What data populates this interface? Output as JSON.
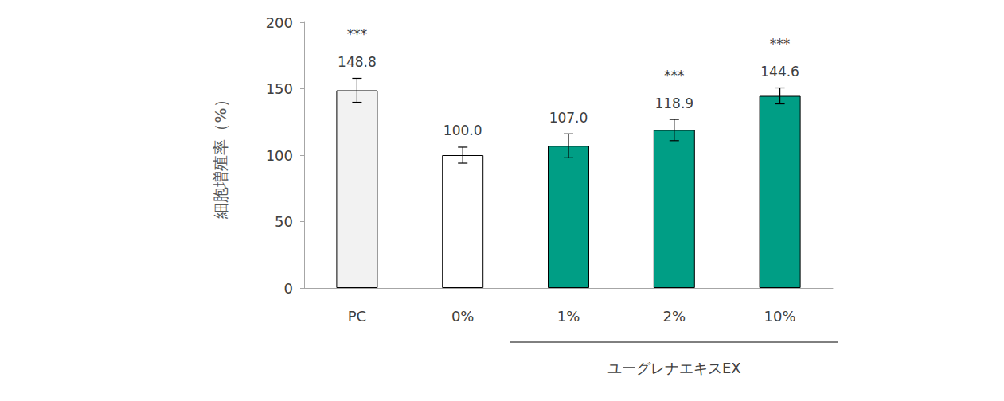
{
  "chart_data": {
    "type": "bar",
    "y_label": "細胞増殖率（%）",
    "categories": [
      "PC",
      "0%",
      "1%",
      "2%",
      "10%"
    ],
    "values": [
      148.8,
      100.0,
      107.0,
      118.9,
      144.6
    ],
    "value_labels": [
      "148.8",
      "100.0",
      "107.0",
      "118.9",
      "144.6"
    ],
    "errors": [
      9,
      6,
      9,
      8,
      6
    ],
    "colors": [
      "#f2f2f2",
      "#ffffff",
      "#009e85",
      "#009e85",
      "#009e85"
    ],
    "annotations": [
      {
        "category": "PC",
        "text": "***"
      },
      {
        "category": "2%",
        "text": "***"
      },
      {
        "category": "10%",
        "text": "***"
      }
    ],
    "group": {
      "label": "ユーグレナエキスEX",
      "categories": [
        "1%",
        "2%",
        "10%"
      ]
    },
    "ylim": [
      0,
      200
    ],
    "yticks": [
      0,
      50,
      100,
      150,
      200
    ],
    "grid": false,
    "data_labels": true
  }
}
